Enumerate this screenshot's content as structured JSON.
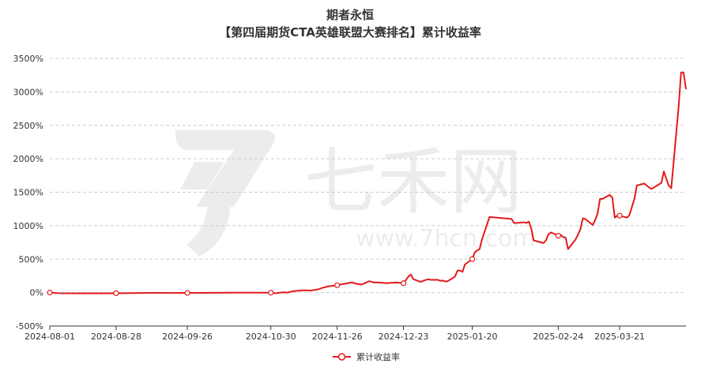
{
  "title": "期者永恒",
  "subtitle": "【第四届期货CTA英雄联盟大赛排名】累计收益率",
  "watermark": {
    "brand": "七禾网",
    "url": "www.7hcn.com"
  },
  "legend": {
    "label": "累计收益率",
    "placement": "bottom-center"
  },
  "colors": {
    "line": "#e31a1c",
    "grid": "#cccccc",
    "axis": "#333333",
    "text": "#333333"
  },
  "chart_data": {
    "type": "line",
    "title": "期者永恒",
    "subtitle": "【第四届期货CTA英雄联盟大赛排名】累计收益率",
    "xlabel": "",
    "ylabel": "",
    "xlim": [
      "2024-08-01",
      "2025-04-17"
    ],
    "ylim": [
      -500,
      3500
    ],
    "y_ticks": [
      -500,
      0,
      500,
      1000,
      1500,
      2000,
      2500,
      3000,
      3500
    ],
    "y_tick_labels": [
      "-500%",
      "0%",
      "500%",
      "1000%",
      "1500%",
      "2000%",
      "2500%",
      "3000%",
      "3500%"
    ],
    "x_tick_labels": [
      "2024-08-01",
      "2024-08-28",
      "2024-09-26",
      "2024-10-30",
      "2024-11-26",
      "2024-12-23",
      "2025-01-20",
      "2025-02-24",
      "2025-03-21"
    ],
    "x_ticks": [
      "2024-08-01",
      "2024-08-28",
      "2024-09-26",
      "2024-10-30",
      "2024-11-26",
      "2024-12-23",
      "2025-01-20",
      "2025-02-24",
      "2025-03-21"
    ],
    "grid": {
      "horizontal": true,
      "vertical": false,
      "style": "dashed"
    },
    "series": [
      {
        "name": "累计收益率",
        "markers": [
          "2024-08-01",
          "2024-08-28",
          "2024-09-26",
          "2024-10-30",
          "2024-11-26",
          "2024-12-23",
          "2025-01-20",
          "2025-02-24",
          "2025-03-21"
        ],
        "points": [
          [
            "2024-08-01",
            0
          ],
          [
            "2024-08-05",
            -10
          ],
          [
            "2024-08-12",
            -12
          ],
          [
            "2024-08-20",
            -12
          ],
          [
            "2024-08-28",
            -10
          ],
          [
            "2024-09-05",
            -8
          ],
          [
            "2024-09-12",
            -5
          ],
          [
            "2024-09-19",
            -6
          ],
          [
            "2024-09-26",
            -5
          ],
          [
            "2024-10-08",
            -3
          ],
          [
            "2024-10-15",
            -2
          ],
          [
            "2024-10-22",
            -2
          ],
          [
            "2024-10-30",
            -2
          ],
          [
            "2024-11-01",
            -10
          ],
          [
            "2024-11-04",
            5
          ],
          [
            "2024-11-06",
            0
          ],
          [
            "2024-11-08",
            20
          ],
          [
            "2024-11-11",
            30
          ],
          [
            "2024-11-13",
            35
          ],
          [
            "2024-11-15",
            30
          ],
          [
            "2024-11-18",
            45
          ],
          [
            "2024-11-20",
            70
          ],
          [
            "2024-11-22",
            90
          ],
          [
            "2024-11-26",
            110
          ],
          [
            "2024-11-28",
            125
          ],
          [
            "2024-12-02",
            150
          ],
          [
            "2024-12-04",
            130
          ],
          [
            "2024-12-06",
            120
          ],
          [
            "2024-12-09",
            170
          ],
          [
            "2024-12-11",
            150
          ],
          [
            "2024-12-13",
            150
          ],
          [
            "2024-12-16",
            140
          ],
          [
            "2024-12-18",
            145
          ],
          [
            "2024-12-20",
            150
          ],
          [
            "2024-12-23",
            140
          ],
          [
            "2024-12-25",
            240
          ],
          [
            "2024-12-26",
            270
          ],
          [
            "2024-12-27",
            200
          ],
          [
            "2024-12-30",
            160
          ],
          [
            "2024-12-31",
            175
          ],
          [
            "2025-01-02",
            200
          ],
          [
            "2025-01-03",
            190
          ],
          [
            "2025-01-06",
            190
          ],
          [
            "2025-01-07",
            175
          ],
          [
            "2025-01-08",
            180
          ],
          [
            "2025-01-09",
            165
          ],
          [
            "2025-01-10",
            170
          ],
          [
            "2025-01-13",
            240
          ],
          [
            "2025-01-14",
            330
          ],
          [
            "2025-01-15",
            330
          ],
          [
            "2025-01-16",
            310
          ],
          [
            "2025-01-17",
            420
          ],
          [
            "2025-01-20",
            500
          ],
          [
            "2025-01-21",
            600
          ],
          [
            "2025-01-22",
            630
          ],
          [
            "2025-01-23",
            650
          ],
          [
            "2025-01-24",
            800
          ],
          [
            "2025-01-27",
            1130
          ],
          [
            "2025-02-05",
            1100
          ],
          [
            "2025-02-06",
            1040
          ],
          [
            "2025-02-07",
            1040
          ],
          [
            "2025-02-10",
            1050
          ],
          [
            "2025-02-11",
            1040
          ],
          [
            "2025-02-12",
            1060
          ],
          [
            "2025-02-13",
            960
          ],
          [
            "2025-02-14",
            780
          ],
          [
            "2025-02-17",
            750
          ],
          [
            "2025-02-18",
            740
          ],
          [
            "2025-02-19",
            780
          ],
          [
            "2025-02-20",
            870
          ],
          [
            "2025-02-21",
            900
          ],
          [
            "2025-02-24",
            850
          ],
          [
            "2025-02-25",
            860
          ],
          [
            "2025-02-26",
            830
          ],
          [
            "2025-02-27",
            820
          ],
          [
            "2025-02-28",
            650
          ],
          [
            "2025-03-03",
            790
          ],
          [
            "2025-03-04",
            860
          ],
          [
            "2025-03-05",
            950
          ],
          [
            "2025-03-06",
            1110
          ],
          [
            "2025-03-07",
            1100
          ],
          [
            "2025-03-10",
            1010
          ],
          [
            "2025-03-11",
            1080
          ],
          [
            "2025-03-12",
            1180
          ],
          [
            "2025-03-13",
            1400
          ],
          [
            "2025-03-14",
            1400
          ],
          [
            "2025-03-17",
            1460
          ],
          [
            "2025-03-18",
            1420
          ],
          [
            "2025-03-19",
            1120
          ],
          [
            "2025-03-20",
            1150
          ],
          [
            "2025-03-21",
            1150
          ],
          [
            "2025-03-24",
            1120
          ],
          [
            "2025-03-25",
            1160
          ],
          [
            "2025-03-26",
            1280
          ],
          [
            "2025-03-27",
            1400
          ],
          [
            "2025-03-28",
            1600
          ],
          [
            "2025-03-31",
            1630
          ],
          [
            "2025-04-01",
            1600
          ],
          [
            "2025-04-02",
            1570
          ],
          [
            "2025-04-03",
            1550
          ],
          [
            "2025-04-07",
            1640
          ],
          [
            "2025-04-08",
            1810
          ],
          [
            "2025-04-09",
            1700
          ],
          [
            "2025-04-10",
            1600
          ],
          [
            "2025-04-11",
            1560
          ],
          [
            "2025-04-14",
            2780
          ],
          [
            "2025-04-15",
            3290
          ],
          [
            "2025-04-16",
            3290
          ],
          [
            "2025-04-17",
            3040
          ]
        ],
        "points_overflow_note": ""
      }
    ]
  }
}
